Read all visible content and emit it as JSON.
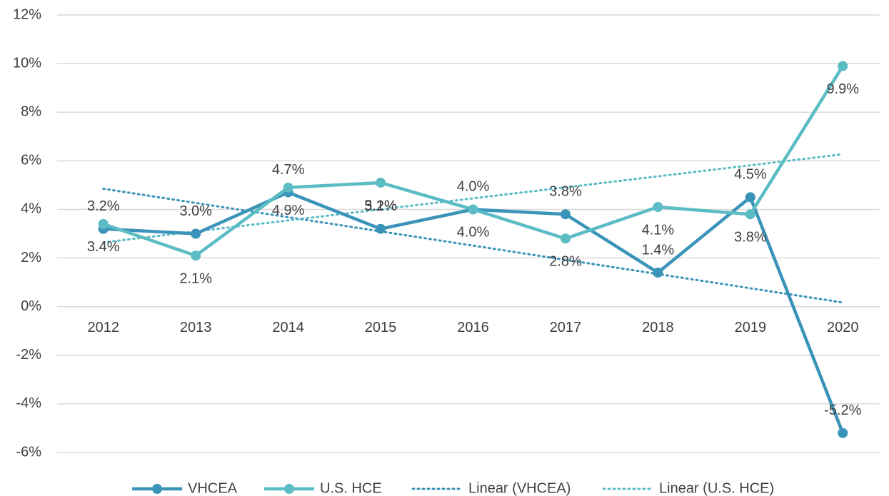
{
  "chart_data": {
    "type": "line",
    "categories": [
      "2012",
      "2013",
      "2014",
      "2015",
      "2016",
      "2017",
      "2018",
      "2019",
      "2020"
    ],
    "series": [
      {
        "name": "VHCEA",
        "color": "#3a93b8",
        "label_side": "above",
        "values": [
          3.2,
          3.0,
          4.7,
          3.2,
          4.0,
          3.8,
          1.4,
          4.5,
          -5.2
        ],
        "value_labels": [
          "3.2%",
          "3.0%",
          "4.7%",
          "3.2%",
          "4.0%",
          "3.8%",
          "1.4%",
          "4.5%",
          "-5.2%"
        ]
      },
      {
        "name": "U.S. HCE",
        "color": "#5bbcc4",
        "label_side": "below",
        "values": [
          3.4,
          2.1,
          4.9,
          5.1,
          4.0,
          2.8,
          4.1,
          3.8,
          9.9
        ],
        "value_labels": [
          "3.4%",
          "2.1%",
          "4.9%",
          "5.1%",
          "4.0%",
          "2.8%",
          "4.1%",
          "3.8%",
          "9.9%"
        ]
      }
    ],
    "trendlines": [
      {
        "name": "Linear (VHCEA)",
        "series": 0,
        "color": "#3a93b8"
      },
      {
        "name": "Linear (U.S. HCE)",
        "series": 1,
        "color": "#5bbcc4"
      }
    ],
    "ylim": [
      -6,
      12
    ],
    "yticks": [
      {
        "value": -6,
        "label": "-6%"
      },
      {
        "value": -4,
        "label": "-4%"
      },
      {
        "value": -2,
        "label": "-2%"
      },
      {
        "value": 0,
        "label": "0%"
      },
      {
        "value": 2,
        "label": "2%"
      },
      {
        "value": 4,
        "label": "4%"
      },
      {
        "value": 6,
        "label": "6%"
      },
      {
        "value": 8,
        "label": "8%"
      },
      {
        "value": 10,
        "label": "10%"
      },
      {
        "value": 12,
        "label": "12%"
      }
    ],
    "grid": true,
    "legend": "bottom"
  }
}
